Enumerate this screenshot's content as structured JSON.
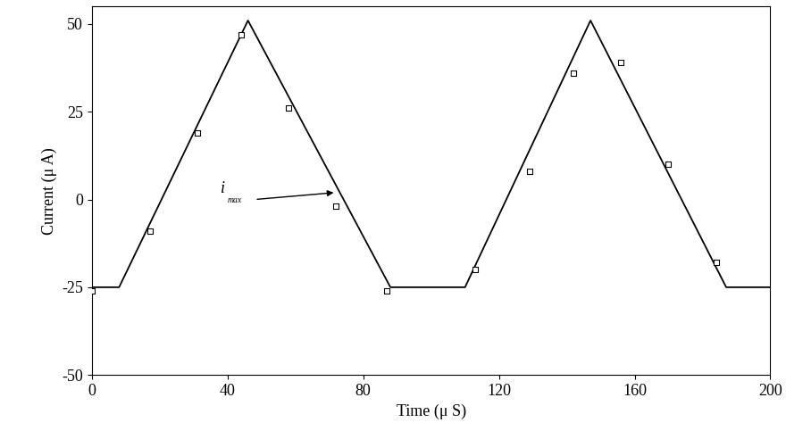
{
  "chart_data": {
    "type": "line",
    "x_label": "Time (μ S)",
    "y_label": "Current (μ A)",
    "xlim": [
      0,
      200
    ],
    "xticks": [
      0,
      40,
      80,
      120,
      160,
      200
    ],
    "ylim": [
      -50,
      55
    ],
    "yticks": [
      -50,
      -25,
      0,
      25,
      50
    ],
    "grid": false,
    "series": [
      {
        "type": "line",
        "color": "#000000",
        "line_style": "solid",
        "x": [
          0,
          8,
          46,
          88,
          110,
          147,
          187,
          200
        ],
        "values": [
          -25,
          -25,
          51,
          -25,
          -25,
          51,
          -25,
          -25
        ]
      },
      {
        "type": "scatter",
        "color": "#000000",
        "marker": "square",
        "x": [
          0,
          17,
          31,
          44,
          58,
          72,
          87,
          113,
          129,
          142,
          156,
          170,
          184
        ],
        "values": [
          -26,
          -9,
          19,
          47,
          26,
          -2,
          -26,
          -20,
          8,
          36,
          39,
          10,
          -18
        ]
      }
    ],
    "annotations": [
      {
        "text": "i",
        "subscript": "max",
        "x": 72,
        "y": 2,
        "text_x": 42,
        "text_y": 0
      }
    ]
  }
}
